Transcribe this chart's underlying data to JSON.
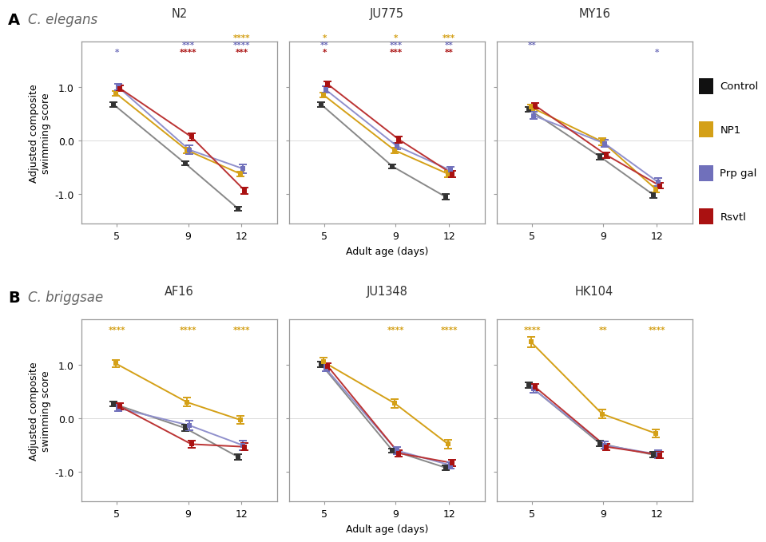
{
  "panel_A_strains": [
    "N2",
    "JU775",
    "MY16"
  ],
  "panel_B_strains": [
    "AF16",
    "JU1348",
    "HK104"
  ],
  "days": [
    5,
    9,
    12
  ],
  "colors": {
    "Control": "#333333",
    "NP1": "#D4A017",
    "Prp gal": "#7070BB",
    "Rsvtl": "#AA1111"
  },
  "line_colors": {
    "Control": "#888888",
    "NP1": "#D4A017",
    "Prp gal": "#9090CC",
    "Rsvtl": "#BB3333"
  },
  "treatments": [
    "Control",
    "NP1",
    "Prp gal",
    "Rsvtl"
  ],
  "offsets": {
    "Control": -0.18,
    "NP1": -0.06,
    "Prp gal": 0.06,
    "Rsvtl": 0.18
  },
  "panel_A_data": {
    "N2": {
      "means": {
        "Control": [
          0.67,
          -0.42,
          -1.27
        ],
        "NP1": [
          0.88,
          -0.18,
          -0.62
        ],
        "Prp gal": [
          1.0,
          -0.17,
          -0.52
        ],
        "Rsvtl": [
          0.97,
          0.07,
          -0.93
        ]
      },
      "sems": {
        "Control": [
          0.04,
          0.04,
          0.04
        ],
        "NP1": [
          0.05,
          0.05,
          0.05
        ],
        "Prp gal": [
          0.06,
          0.08,
          0.08
        ],
        "Rsvtl": [
          0.05,
          0.07,
          0.06
        ]
      }
    },
    "JU775": {
      "means": {
        "Control": [
          0.67,
          -0.48,
          -1.05
        ],
        "NP1": [
          0.85,
          -0.18,
          -0.62
        ],
        "Prp gal": [
          0.95,
          -0.1,
          -0.55
        ],
        "Rsvtl": [
          1.05,
          0.02,
          -0.62
        ]
      },
      "sems": {
        "Control": [
          0.05,
          0.04,
          0.05
        ],
        "NP1": [
          0.04,
          0.05,
          0.06
        ],
        "Prp gal": [
          0.06,
          0.06,
          0.06
        ],
        "Rsvtl": [
          0.05,
          0.06,
          0.06
        ]
      }
    },
    "MY16": {
      "means": {
        "Control": [
          0.58,
          -0.3,
          -1.01
        ],
        "NP1": [
          0.62,
          -0.02,
          -0.9
        ],
        "Prp gal": [
          0.47,
          -0.05,
          -0.77
        ],
        "Rsvtl": [
          0.65,
          -0.27,
          -0.84
        ]
      },
      "sems": {
        "Control": [
          0.05,
          0.05,
          0.05
        ],
        "NP1": [
          0.05,
          0.06,
          0.06
        ],
        "Prp gal": [
          0.07,
          0.06,
          0.08
        ],
        "Rsvtl": [
          0.05,
          0.05,
          0.05
        ]
      }
    }
  },
  "panel_B_data": {
    "AF16": {
      "means": {
        "Control": [
          0.27,
          -0.18,
          -0.72
        ],
        "NP1": [
          1.02,
          0.3,
          -0.03
        ],
        "Prp gal": [
          0.19,
          -0.13,
          -0.5
        ],
        "Rsvtl": [
          0.22,
          -0.48,
          -0.53
        ]
      },
      "sems": {
        "Control": [
          0.05,
          0.06,
          0.05
        ],
        "NP1": [
          0.07,
          0.08,
          0.07
        ],
        "Prp gal": [
          0.06,
          0.09,
          0.09
        ],
        "Rsvtl": [
          0.06,
          0.07,
          0.07
        ]
      }
    },
    "JU1348": {
      "means": {
        "Control": [
          1.0,
          -0.6,
          -0.92
        ],
        "NP1": [
          1.05,
          0.28,
          -0.48
        ],
        "Prp gal": [
          0.93,
          -0.6,
          -0.87
        ],
        "Rsvtl": [
          0.97,
          -0.65,
          -0.83
        ]
      },
      "sems": {
        "Control": [
          0.05,
          0.04,
          0.05
        ],
        "NP1": [
          0.08,
          0.08,
          0.08
        ],
        "Prp gal": [
          0.06,
          0.06,
          0.06
        ],
        "Rsvtl": [
          0.06,
          0.06,
          0.06
        ]
      }
    },
    "HK104": {
      "means": {
        "Control": [
          0.62,
          -0.47,
          -0.68
        ],
        "NP1": [
          1.42,
          0.08,
          -0.28
        ],
        "Prp gal": [
          0.55,
          -0.5,
          -0.67
        ],
        "Rsvtl": [
          0.58,
          -0.53,
          -0.68
        ]
      },
      "sems": {
        "Control": [
          0.05,
          0.05,
          0.05
        ],
        "NP1": [
          0.09,
          0.08,
          0.08
        ],
        "Prp gal": [
          0.07,
          0.07,
          0.07
        ],
        "Rsvtl": [
          0.06,
          0.06,
          0.06
        ]
      }
    }
  },
  "asterisks_A": {
    "N2": {
      "5": [
        {
          "color": "#7070BB",
          "text": "*",
          "row": 0
        }
      ],
      "9": [
        {
          "color": "#7070BB",
          "text": "***",
          "row": 1
        },
        {
          "color": "#AA1111",
          "text": "****",
          "row": 0
        }
      ],
      "12": [
        {
          "color": "#D4A017",
          "text": "****",
          "row": 2
        },
        {
          "color": "#7070BB",
          "text": "****",
          "row": 1
        },
        {
          "color": "#AA1111",
          "text": "***",
          "row": 0
        }
      ]
    },
    "JU775": {
      "5": [
        {
          "color": "#D4A017",
          "text": "*",
          "row": 2
        },
        {
          "color": "#7070BB",
          "text": "**",
          "row": 1
        },
        {
          "color": "#AA1111",
          "text": "*",
          "row": 0
        }
      ],
      "9": [
        {
          "color": "#D4A017",
          "text": "*",
          "row": 2
        },
        {
          "color": "#7070BB",
          "text": "***",
          "row": 1
        },
        {
          "color": "#AA1111",
          "text": "***",
          "row": 0
        }
      ],
      "12": [
        {
          "color": "#D4A017",
          "text": "***",
          "row": 2
        },
        {
          "color": "#7070BB",
          "text": "**",
          "row": 1
        },
        {
          "color": "#AA1111",
          "text": "**",
          "row": 0
        }
      ]
    },
    "MY16": {
      "5": [
        {
          "color": "#7070BB",
          "text": "**",
          "row": 1
        }
      ],
      "9": [],
      "12": [
        {
          "color": "#7070BB",
          "text": "*",
          "row": 0
        }
      ]
    }
  },
  "asterisks_B": {
    "AF16": {
      "5": [
        {
          "color": "#D4A017",
          "text": "****",
          "row": 0
        }
      ],
      "9": [
        {
          "color": "#D4A017",
          "text": "****",
          "row": 0
        }
      ],
      "12": [
        {
          "color": "#D4A017",
          "text": "****",
          "row": 0
        }
      ]
    },
    "JU1348": {
      "5": [],
      "9": [
        {
          "color": "#D4A017",
          "text": "****",
          "row": 0
        }
      ],
      "12": [
        {
          "color": "#D4A017",
          "text": "****",
          "row": 0
        }
      ]
    },
    "HK104": {
      "5": [
        {
          "color": "#D4A017",
          "text": "****",
          "row": 0
        }
      ],
      "9": [
        {
          "color": "#D4A017",
          "text": "**",
          "row": 0
        }
      ],
      "12": [
        {
          "color": "#D4A017",
          "text": "****",
          "row": 0
        }
      ]
    }
  },
  "ylim": [
    -1.55,
    1.85
  ],
  "yticks": [
    -1.0,
    0.0,
    1.0
  ],
  "xlabel": "Adult age (days)",
  "ylabel": "Adjusted composite\nswimming score",
  "legend_items": [
    {
      "label": "Control",
      "color": "#111111"
    },
    {
      "label": "NP1",
      "color": "#D4A017"
    },
    {
      "label": "Prp gal",
      "color": "#7070BB"
    },
    {
      "label": "Rsvtl",
      "color": "#AA1111"
    }
  ]
}
